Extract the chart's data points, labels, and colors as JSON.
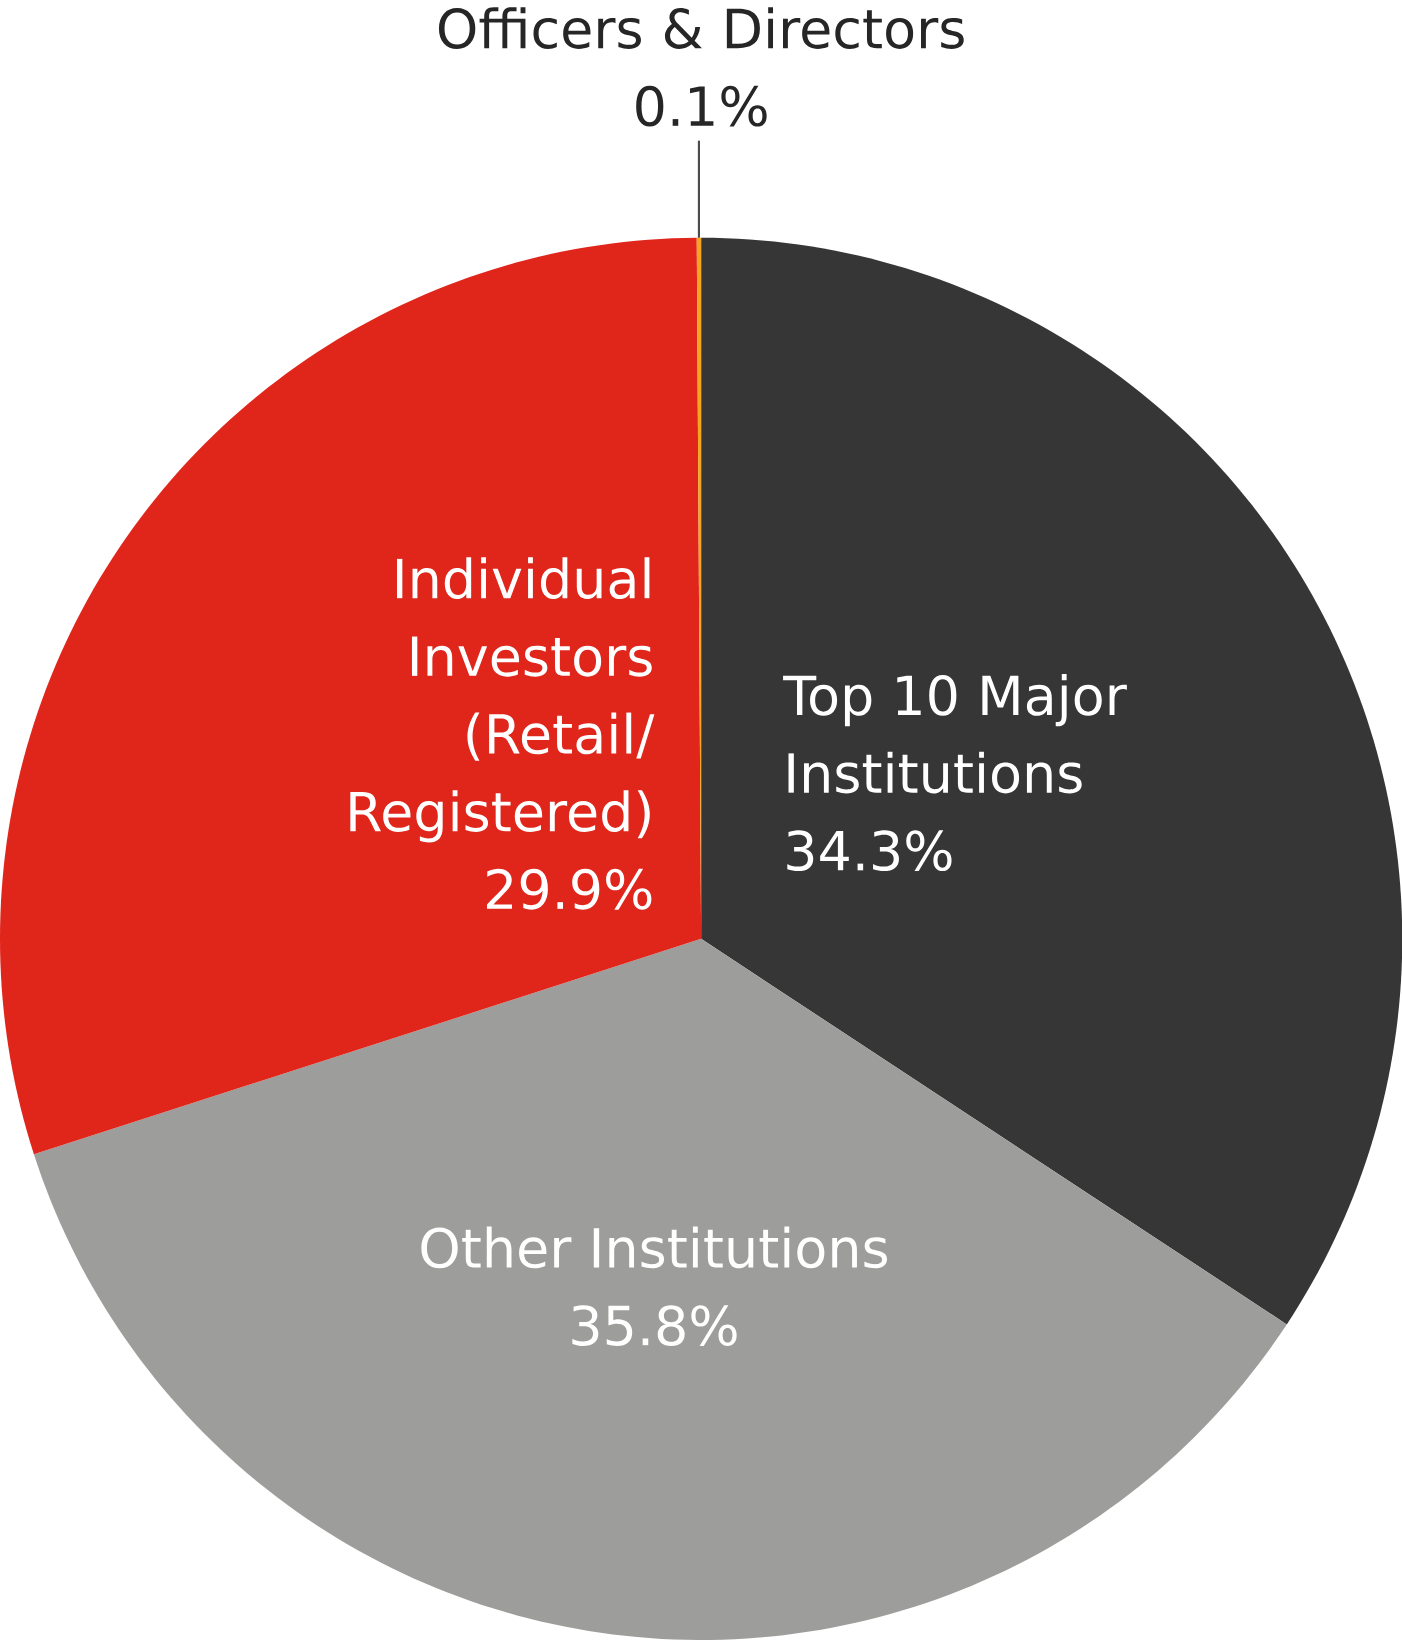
{
  "chart_data": {
    "type": "pie",
    "categories": [
      "Top 10 Major Institutions",
      "Other Institutions",
      "Individual Investors (Retail/Registered)",
      "Officers & Directors"
    ],
    "values": [
      34.3,
      35.8,
      29.9,
      0.1
    ],
    "value_labels": [
      "34.3%",
      "35.8%",
      "29.9%",
      "0.1%"
    ],
    "colors": [
      "#363636",
      "#9d9d9b",
      "#e0251b",
      "#f5a51f"
    ]
  }
}
